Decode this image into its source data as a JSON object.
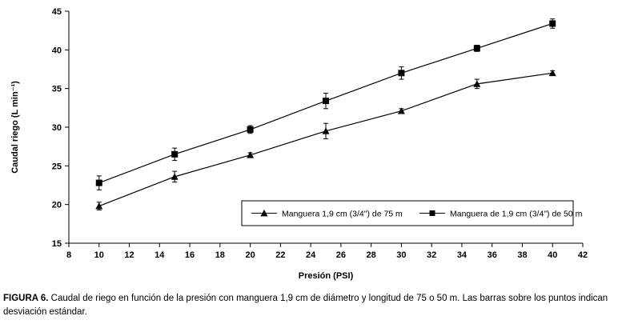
{
  "chart_data": {
    "type": "line",
    "title": "",
    "xlabel": "Presión (PSI)",
    "ylabel": "Caudal riego (L min⁻¹)",
    "xlim": [
      8,
      42
    ],
    "ylim": [
      15,
      45
    ],
    "xticks": [
      8,
      10,
      12,
      14,
      16,
      18,
      20,
      22,
      24,
      26,
      28,
      30,
      32,
      34,
      36,
      38,
      40,
      42
    ],
    "yticks": [
      15,
      20,
      25,
      30,
      35,
      40,
      45
    ],
    "grid": false,
    "legend_position": "inside-bottom-right",
    "line_color": "#000000",
    "x": [
      10,
      15,
      20,
      25,
      30,
      35,
      40
    ],
    "series": [
      {
        "name": "Manguera 1,9 cm (3/4\") de 75 m",
        "marker": "triangle",
        "values": [
          19.8,
          23.6,
          26.4,
          29.5,
          32.1,
          35.6,
          37.0
        ],
        "errors": [
          0.5,
          0.7,
          0.3,
          1.0,
          0.3,
          0.6,
          0.3
        ]
      },
      {
        "name": "Manguera de 1,9 cm (3/4\") de 50 m",
        "marker": "square",
        "values": [
          22.8,
          26.5,
          29.7,
          33.4,
          37.0,
          40.2,
          43.4
        ],
        "errors": [
          0.9,
          0.8,
          0.5,
          1.0,
          0.8,
          0.4,
          0.6
        ]
      }
    ]
  },
  "caption": {
    "label": "FIGURA 6.",
    "text": " Caudal de riego en función de la presión con manguera 1,9 cm de diámetro y longitud de 75 o 50 m. Las barras sobre los puntos indican desviación estándar."
  }
}
